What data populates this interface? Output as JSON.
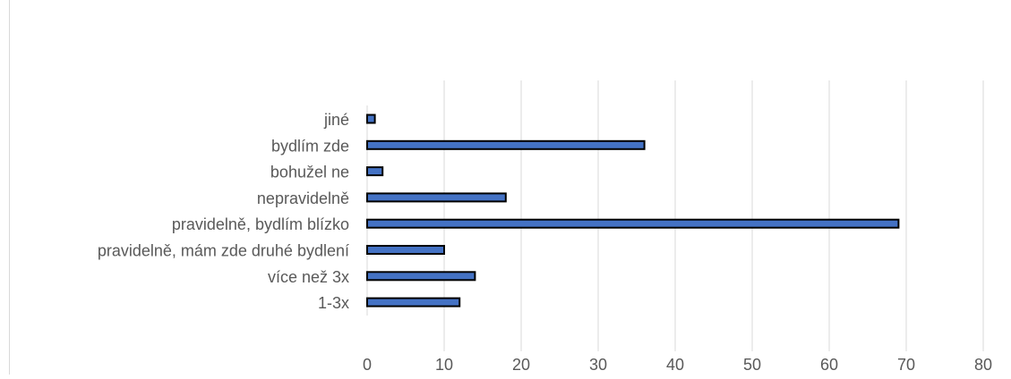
{
  "chart_data": {
    "type": "bar",
    "orientation": "horizontal",
    "categories": [
      "1-3x",
      "více než 3x",
      "pravidelně, mám zde druhé bydlení",
      "pravidelně, bydlím blízko",
      "nepravidelně",
      "bohužel ne",
      "bydlím zde",
      "jiné"
    ],
    "values": [
      12,
      14,
      10,
      69,
      18,
      2,
      36,
      1
    ],
    "xlim": [
      0,
      80
    ],
    "x_ticks": [
      0,
      10,
      20,
      30,
      40,
      50,
      60,
      70,
      80
    ],
    "grid": "vertical",
    "legend": "none",
    "title": "",
    "xlabel": "",
    "ylabel": "",
    "colors": {
      "bar_fill": "#4472c4",
      "bar_stroke": "#000000",
      "grid": "#d9d9d9",
      "text": "#595959"
    }
  }
}
